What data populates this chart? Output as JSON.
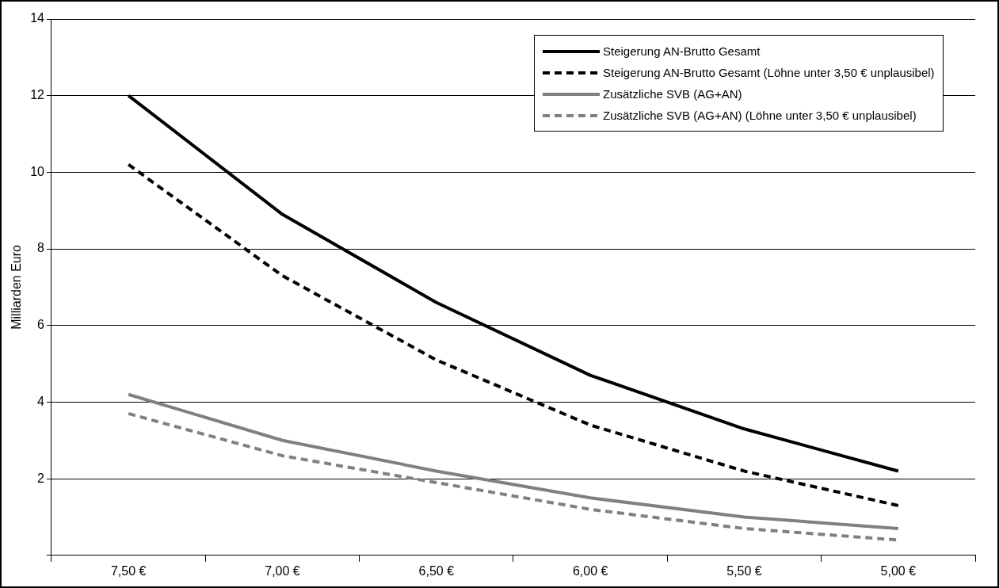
{
  "chart_data": {
    "type": "line",
    "ylabel": "Milliarden Euro",
    "categories": [
      "7,50 €",
      "7,00 €",
      "6,50 €",
      "6,00 €",
      "5,50 €",
      "5,00 €"
    ],
    "ylim": [
      0,
      14
    ],
    "yticks": [
      {
        "value": 0,
        "label": null
      },
      2,
      4,
      6,
      8,
      10,
      12,
      14
    ],
    "grid": "y",
    "legend": "top right",
    "marker": "none",
    "series": [
      {
        "name": "Steigerung AN-Brutto Gesamt",
        "color": "#000000",
        "line_style": "solid",
        "values": [
          12.0,
          8.9,
          6.6,
          4.7,
          3.3,
          2.2
        ]
      },
      {
        "name": "Steigerung AN-Brutto Gesamt (Löhne unter 3,50 € unplausibel)",
        "color": "#000000",
        "line_style": "dashed",
        "values": [
          10.2,
          7.3,
          5.1,
          3.4,
          2.2,
          1.3
        ]
      },
      {
        "name": "Zusätzliche SVB (AG+AN)",
        "color": "#808080",
        "line_style": "solid",
        "values": [
          4.2,
          3.0,
          2.2,
          1.5,
          1.0,
          0.7
        ]
      },
      {
        "name": "Zusätzliche SVB (AG+AN) (Löhne unter 3,50 € unplausibel)",
        "color": "#808080",
        "line_style": "dashed",
        "values": [
          3.7,
          2.6,
          1.9,
          1.2,
          0.7,
          0.4
        ]
      }
    ]
  }
}
